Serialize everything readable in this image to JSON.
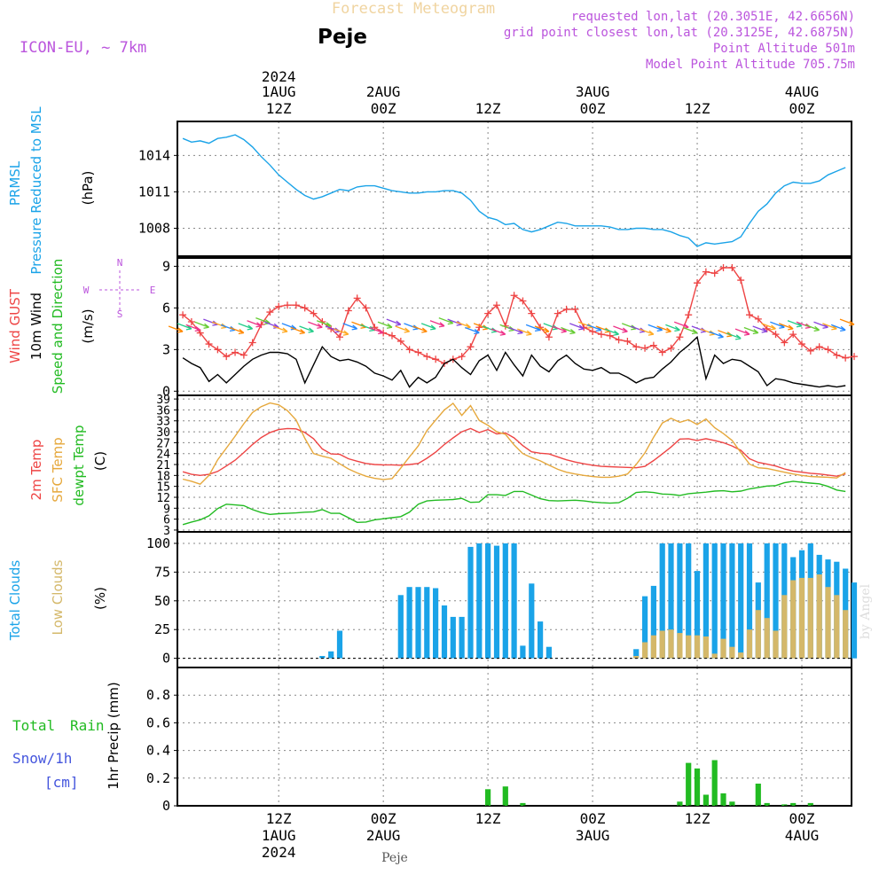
{
  "header": {
    "top_title": "Forecast Meteogram",
    "location": "Peje",
    "model": "ICON-EU, ~ 7km",
    "info_lines": [
      "requested lon,lat (20.3051E, 42.6656N)",
      "grid point closest lon,lat (20.3125E, 42.6875N)",
      "Point Altitude 501m",
      "Model Point Altitude 705.75m"
    ]
  },
  "time_axis": {
    "top_year": "2024",
    "ticks": [
      {
        "hour": 12,
        "line1": "1AUG",
        "line2": "12Z"
      },
      {
        "hour": 24,
        "line1": "2AUG",
        "line2": "00Z"
      },
      {
        "hour": 36,
        "line1": "",
        "line2": "12Z"
      },
      {
        "hour": 48,
        "line1": "3AUG",
        "line2": "00Z"
      },
      {
        "hour": 60,
        "line1": "",
        "line2": "12Z"
      },
      {
        "hour": 72,
        "line1": "4AUG",
        "line2": "00Z"
      }
    ],
    "bottom_ticks": [
      {
        "hour": 12,
        "line1": "12Z",
        "line2": "1AUG",
        "line3": "2024"
      },
      {
        "hour": 24,
        "line1": "00Z",
        "line2": "2AUG",
        "line3": ""
      },
      {
        "hour": 36,
        "line1": "12Z",
        "line2": "",
        "line3": ""
      },
      {
        "hour": 48,
        "line1": "00Z",
        "line2": "3AUG",
        "line3": ""
      },
      {
        "hour": 60,
        "line1": "12Z",
        "line2": "",
        "line3": ""
      },
      {
        "hour": 72,
        "line1": "00Z",
        "line2": "4AUG",
        "line3": ""
      }
    ],
    "footer_location": "Peje",
    "watermark": "by Angel"
  },
  "chart_data": [
    {
      "type": "line",
      "panel": "pressure",
      "labels": {
        "l1": "PRMSL",
        "l2": "Pressure Reduced to MSL",
        "unit": "(hPa)"
      },
      "ylim": [
        1005.7,
        1016.8
      ],
      "yticks": [
        "1008",
        "1011",
        "1014"
      ],
      "x_start": 1,
      "series": [
        {
          "name": "PRMSL",
          "color": "#1aa3e8",
          "values": [
            1015.4,
            1015.1,
            1015.2,
            1015.0,
            1015.4,
            1015.5,
            1015.7,
            1015.3,
            1014.7,
            1013.9,
            1013.2,
            1012.4,
            1011.8,
            1011.2,
            1010.7,
            1010.4,
            1010.6,
            1010.9,
            1011.2,
            1011.1,
            1011.4,
            1011.5,
            1011.5,
            1011.3,
            1011.1,
            1011.0,
            1010.9,
            1010.9,
            1011.0,
            1011.0,
            1011.1,
            1011.1,
            1010.9,
            1010.3,
            1009.4,
            1008.9,
            1008.7,
            1008.3,
            1008.4,
            1007.9,
            1007.7,
            1007.9,
            1008.2,
            1008.5,
            1008.4,
            1008.2,
            1008.2,
            1008.2,
            1008.2,
            1008.1,
            1007.9,
            1007.9,
            1008.0,
            1008.0,
            1007.9,
            1007.9,
            1007.7,
            1007.4,
            1007.2,
            1006.5,
            1006.8,
            1006.7,
            1006.8,
            1006.9,
            1007.3,
            1008.4,
            1009.4,
            1010.0,
            1010.9,
            1011.5,
            1011.8,
            1011.7,
            1011.7,
            1011.9,
            1012.4,
            1012.7,
            1013.0
          ]
        }
      ]
    },
    {
      "type": "line",
      "panel": "wind",
      "labels": {
        "l1": "Wind GUST",
        "l2": "10m Wind",
        "l3": "Speed and Direction",
        "unit": "(m/s)",
        "compass_n": "N",
        "compass_e": "E",
        "compass_w": "W",
        "compass_s": "S"
      },
      "ylim": [
        -0.3,
        9.6
      ],
      "yticks": [
        "0",
        "3",
        "6",
        "9"
      ],
      "x_start": 1,
      "series": [
        {
          "name": "Wind GUST",
          "color": "#ee4444",
          "values": [
            5.5,
            5.0,
            4.2,
            3.4,
            3.0,
            2.5,
            2.8,
            2.6,
            3.5,
            4.8,
            5.7,
            6.1,
            6.2,
            6.2,
            6.0,
            5.6,
            5.0,
            4.5,
            3.9,
            5.8,
            6.7,
            6.0,
            4.6,
            4.2,
            4.0,
            3.6,
            3.0,
            2.8,
            2.5,
            2.3,
            2.0,
            2.3,
            2.5,
            3.2,
            4.6,
            5.6,
            6.2,
            4.7,
            6.9,
            6.5,
            5.6,
            4.6,
            3.9,
            5.6,
            5.9,
            5.9,
            4.6,
            4.3,
            4.1,
            4.0,
            3.7,
            3.6,
            3.2,
            3.1,
            3.3,
            2.8,
            3.1,
            3.9,
            5.5,
            7.8,
            8.6,
            8.5,
            8.9,
            8.9,
            8.0,
            5.5,
            5.2,
            4.5,
            4.1,
            3.5,
            4.1,
            3.4,
            2.9,
            3.2,
            3.0,
            2.6,
            2.4,
            2.5
          ]
        },
        {
          "name": "10m Wind",
          "color": "#000000",
          "values": [
            2.4,
            2.0,
            1.7,
            0.7,
            1.2,
            0.6,
            1.2,
            1.8,
            2.3,
            2.6,
            2.8,
            2.8,
            2.7,
            2.3,
            0.6,
            1.9,
            3.2,
            2.5,
            2.2,
            2.3,
            2.1,
            1.8,
            1.3,
            1.1,
            0.8,
            1.5,
            0.3,
            1.0,
            0.6,
            1.0,
            2.0,
            2.3,
            1.7,
            1.2,
            2.2,
            2.6,
            1.5,
            2.8,
            1.9,
            1.1,
            2.6,
            1.8,
            1.4,
            2.2,
            2.6,
            2.0,
            1.6,
            1.5,
            1.7,
            1.3,
            1.3,
            1.0,
            0.6,
            0.9,
            1.0,
            1.6,
            2.1,
            2.8,
            3.3,
            3.9,
            0.9,
            2.6,
            2.0,
            2.3,
            2.2,
            1.8,
            1.4,
            0.4,
            0.9,
            0.8,
            0.6,
            0.5,
            0.4,
            0.3,
            0.4,
            0.3,
            0.4
          ]
        }
      ],
      "arrow_levels": [
        4.3,
        4.5,
        4.4,
        4.6,
        4.8,
        4.6,
        4.4,
        4.2,
        4.5,
        4.7,
        4.9,
        4.6,
        4.3,
        4.5,
        4.2,
        4.3,
        4.6,
        4.7,
        4.3,
        4.1,
        4.5,
        4.6,
        4.4,
        4.2,
        4.6,
        4.8,
        4.3,
        4.5,
        4.3,
        4.5,
        4.7,
        4.9,
        4.8,
        4.6,
        4.2,
        4.5,
        4.3,
        4.1,
        4.4,
        4.2,
        4.1,
        4.4,
        4.3,
        4.5,
        4.3,
        4.2,
        4.5,
        4.6,
        4.4,
        4.3,
        4.1,
        4.3,
        4.5,
        4.3,
        4.1,
        4.4,
        4.3,
        4.4,
        4.6,
        4.2,
        4.3,
        4.1,
        3.9,
        4.0,
        3.8,
        4.1,
        4.2,
        4.3,
        4.5,
        4.6,
        4.5,
        4.7,
        4.6,
        4.4,
        4.6,
        4.5,
        4.4,
        4.8
      ]
    },
    {
      "type": "line",
      "panel": "temperature",
      "labels": {
        "l1": "2m Temp",
        "l2": "SFC Temp",
        "l3": "dewpt Temp",
        "unit": "(C)"
      },
      "ylim": [
        2.5,
        40
      ],
      "yticks": [
        "3",
        "6",
        "9",
        "12",
        "15",
        "18",
        "21",
        "24",
        "27",
        "30",
        "33",
        "36",
        "39"
      ],
      "x_start": 1,
      "series": [
        {
          "name": "2m Temp",
          "color": "#ee4444",
          "values": [
            19.0,
            18.3,
            18.0,
            18.3,
            19.1,
            20.6,
            22.2,
            24.3,
            26.5,
            28.4,
            29.8,
            30.6,
            30.9,
            30.8,
            29.8,
            28.1,
            25.3,
            23.9,
            23.8,
            22.6,
            21.9,
            21.3,
            21.0,
            20.9,
            20.9,
            20.8,
            21.0,
            21.3,
            22.7,
            24.4,
            26.5,
            28.3,
            30.0,
            30.9,
            29.8,
            30.6,
            29.4,
            29.7,
            28.3,
            26.2,
            24.5,
            24.1,
            23.9,
            23.1,
            22.3,
            21.7,
            21.2,
            20.8,
            20.5,
            20.4,
            20.3,
            20.2,
            20.1,
            20.5,
            22.1,
            23.9,
            25.8,
            28.0,
            28.1,
            27.6,
            28.1,
            27.6,
            27.0,
            26.1,
            24.9,
            22.6,
            21.6,
            21.1,
            20.6,
            19.8,
            19.2,
            18.9,
            18.6,
            18.4,
            18.1,
            17.8,
            18.4
          ]
        },
        {
          "name": "SFC Temp",
          "color": "#e6a83c",
          "values": [
            17.0,
            16.4,
            15.6,
            18.0,
            22.3,
            25.5,
            28.8,
            32.2,
            35.3,
            36.9,
            37.9,
            37.4,
            35.8,
            33.2,
            28.2,
            24.0,
            23.3,
            22.7,
            21.2,
            19.8,
            18.7,
            17.8,
            17.2,
            16.9,
            17.1,
            20.0,
            23.1,
            26.1,
            30.3,
            33.2,
            36.0,
            37.8,
            34.5,
            37.2,
            33.1,
            31.8,
            30.0,
            29.3,
            26.4,
            24.0,
            22.9,
            22.0,
            20.8,
            19.7,
            18.9,
            18.4,
            18.0,
            17.7,
            17.5,
            17.5,
            17.8,
            18.4,
            21.0,
            24.2,
            28.5,
            32.4,
            33.7,
            32.6,
            33.3,
            32.0,
            33.5,
            31.1,
            29.5,
            27.6,
            24.3,
            21.1,
            20.1,
            19.9,
            19.4,
            18.9,
            18.4,
            18.0,
            17.7,
            17.6,
            17.5,
            17.3,
            18.8
          ]
        },
        {
          "name": "dewpt Temp",
          "color": "#22bb22",
          "values": [
            4.5,
            5.2,
            5.8,
            6.9,
            8.9,
            10.1,
            9.9,
            9.7,
            8.6,
            7.8,
            7.3,
            7.5,
            7.6,
            7.7,
            7.9,
            8.0,
            8.6,
            7.6,
            7.6,
            6.4,
            5.1,
            5.2,
            5.8,
            6.1,
            6.4,
            6.7,
            7.9,
            10.1,
            11.0,
            11.2,
            11.3,
            11.4,
            11.7,
            10.6,
            10.7,
            12.7,
            12.7,
            12.5,
            13.6,
            13.6,
            12.6,
            11.6,
            11.1,
            11.0,
            11.1,
            11.2,
            11.0,
            10.7,
            10.5,
            10.4,
            10.5,
            11.7,
            13.3,
            13.5,
            13.3,
            12.9,
            12.8,
            12.5,
            13.0,
            13.2,
            13.4,
            13.7,
            13.8,
            13.5,
            13.7,
            14.3,
            14.7,
            15.1,
            15.2,
            16.0,
            16.4,
            16.1,
            15.9,
            15.7,
            15.0,
            14.0,
            13.6
          ]
        }
      ]
    },
    {
      "type": "bar",
      "panel": "clouds",
      "labels": {
        "l1": "Total Clouds",
        "l2": "Low Clouds",
        "unit": "(%)"
      },
      "ylim": [
        -8,
        110
      ],
      "yticks": [
        "0",
        "25",
        "50",
        "75",
        "100"
      ],
      "x_start": 1,
      "series": [
        {
          "name": "Total Clouds",
          "color": "#1aa3e8",
          "values": [
            0,
            0,
            0,
            0,
            0,
            0,
            0,
            0,
            0,
            0,
            0,
            0,
            0,
            0,
            0,
            0,
            2,
            6,
            24,
            0,
            0,
            0,
            0,
            0,
            0,
            55,
            62,
            62,
            62,
            61,
            46,
            36,
            36,
            97,
            100,
            100,
            98,
            100,
            100,
            11,
            65,
            32,
            10,
            0,
            0,
            0,
            0,
            0,
            0,
            0,
            0,
            0,
            8,
            54,
            63,
            100,
            100,
            100,
            100,
            76,
            100,
            100,
            100,
            100,
            100,
            100,
            66,
            100,
            100,
            100,
            88,
            94,
            100,
            90,
            86,
            84,
            78,
            66
          ]
        },
        {
          "name": "Low Clouds",
          "color": "#d4b86a",
          "values": [
            0,
            0,
            0,
            0,
            0,
            0,
            0,
            0,
            0,
            0,
            0,
            0,
            0,
            0,
            0,
            0,
            0,
            0,
            0,
            0,
            0,
            0,
            0,
            0,
            0,
            0,
            0,
            0,
            0,
            0,
            0,
            0,
            0,
            0,
            0,
            0,
            0,
            0,
            0,
            0,
            0,
            0,
            0,
            0,
            0,
            0,
            0,
            0,
            0,
            0,
            0,
            0,
            2,
            14,
            20,
            24,
            25,
            22,
            20,
            20,
            19,
            4,
            17,
            10,
            5,
            25,
            42,
            35,
            24,
            55,
            68,
            70,
            70,
            73,
            62,
            55,
            42,
            0
          ]
        }
      ]
    },
    {
      "type": "bar",
      "panel": "precip",
      "labels": {
        "total": "Total",
        "rain": "Rain",
        "snow": "Snow/1h",
        "snow_unit": "[cm]",
        "unit": "1hr Precip (mm)"
      },
      "ylim": [
        0,
        1.0
      ],
      "yticks": [
        "0",
        "0.2",
        "0.4",
        "0.6",
        "0.8"
      ],
      "x_start": 1,
      "series": [
        {
          "name": "Rain",
          "color": "#22bb22",
          "values": [
            0,
            0,
            0,
            0,
            0,
            0,
            0,
            0,
            0,
            0,
            0,
            0,
            0,
            0,
            0,
            0,
            0,
            0,
            0,
            0,
            0,
            0,
            0,
            0,
            0,
            0,
            0,
            0,
            0,
            0,
            0,
            0,
            0,
            0,
            0,
            0.12,
            0,
            0.14,
            0,
            0.02,
            0,
            0,
            0,
            0,
            0,
            0,
            0,
            0,
            0,
            0,
            0,
            0,
            0,
            0,
            0,
            0,
            0,
            0.03,
            0.31,
            0.27,
            0.08,
            0.33,
            0.09,
            0.03,
            0,
            0,
            0.16,
            0.02,
            0,
            0.01,
            0.02,
            0,
            0.02,
            0,
            0,
            0,
            0
          ]
        }
      ]
    }
  ]
}
